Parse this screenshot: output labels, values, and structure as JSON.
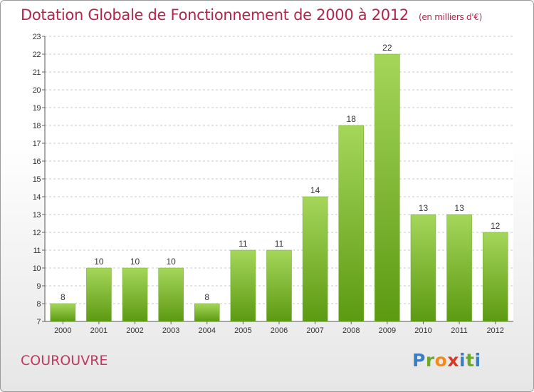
{
  "header": {
    "title": "Dotation Globale de Fonctionnement de 2000 à 2012",
    "unit": "(en milliers d'€)"
  },
  "footer": {
    "commune": "COUROUVRE",
    "logo": "Proxiti"
  },
  "colors": {
    "title": "#b5244a",
    "bar_top": "#a5d65a",
    "bar_bottom": "#5c9a12",
    "logo_letters": [
      "#3a7fc4",
      "#6aaa2a",
      "#f08c1a",
      "#d83a2a",
      "#3a7fc4",
      "#6aaa2a",
      "#3a7fc4"
    ]
  },
  "chart_data": {
    "type": "bar",
    "title": "Dotation Globale de Fonctionnement de 2000 à 2012",
    "subtitle": "(en milliers d'€)",
    "categories": [
      "2000",
      "2001",
      "2002",
      "2003",
      "2004",
      "2005",
      "2006",
      "2007",
      "2008",
      "2009",
      "2010",
      "2011",
      "2012"
    ],
    "values": [
      8,
      10,
      10,
      10,
      8,
      11,
      11,
      14,
      18,
      22,
      13,
      13,
      12
    ],
    "ylim": [
      7,
      23
    ],
    "yticks": [
      7,
      8,
      9,
      10,
      11,
      12,
      13,
      14,
      15,
      16,
      17,
      18,
      19,
      20,
      21,
      22,
      23
    ],
    "grid": true,
    "data_labels": true
  }
}
